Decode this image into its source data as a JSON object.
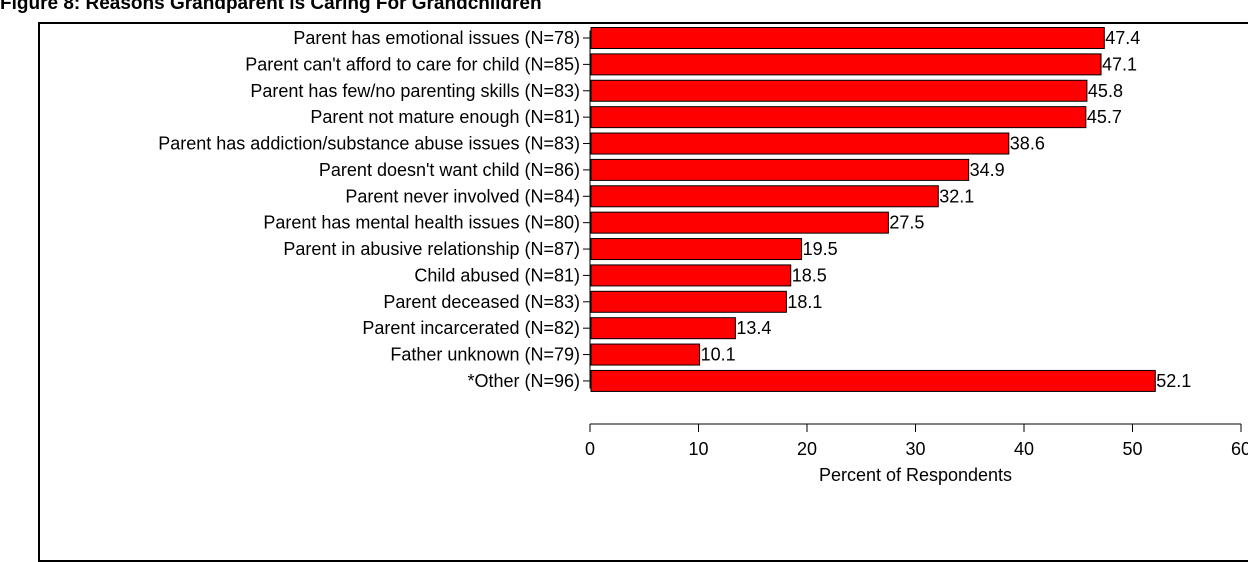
{
  "figure": {
    "title": "Figure 8: Reasons Grandparent is Caring For Grandchildren"
  },
  "colors": {
    "bar_fill": "#ff0000",
    "bar_stroke": "#000000",
    "axis": "#000000"
  },
  "chart_data": {
    "type": "bar",
    "orientation": "horizontal",
    "title": "Figure 8: Reasons Grandparent is Caring For Grandchildren",
    "xlabel": "Percent of Respondents",
    "ylabel": "",
    "xlim": [
      0,
      60
    ],
    "xticks": [
      0,
      10,
      20,
      30,
      40,
      50,
      60
    ],
    "grid": false,
    "legend": "none",
    "categories": [
      "Parent has emotional issues (N=78)",
      "Parent can't afford to care for child (N=85)",
      "Parent has few/no parenting skills (N=83)",
      "Parent not mature enough (N=81)",
      "Parent has addiction/substance abuse issues (N=83)",
      "Parent doesn't want child (N=86)",
      "Parent never involved (N=84)",
      "Parent has mental health issues (N=80)",
      "Parent in abusive relationship (N=87)",
      "Child abused (N=81)",
      "Parent deceased (N=83)",
      "Parent incarcerated (N=82)",
      "Father unknown (N=79)",
      "*Other (N=96)"
    ],
    "values": [
      47.4,
      47.1,
      45.8,
      45.7,
      38.6,
      34.9,
      32.1,
      27.5,
      19.5,
      18.5,
      18.1,
      13.4,
      10.1,
      52.1
    ],
    "value_labels": [
      "47.4",
      "47.1",
      "45.8",
      "45.7",
      "38.6",
      "34.9",
      "32.1",
      "27.5",
      "19.5",
      "18.5",
      "18.1",
      "13.4",
      "10.1",
      "52.1"
    ]
  }
}
